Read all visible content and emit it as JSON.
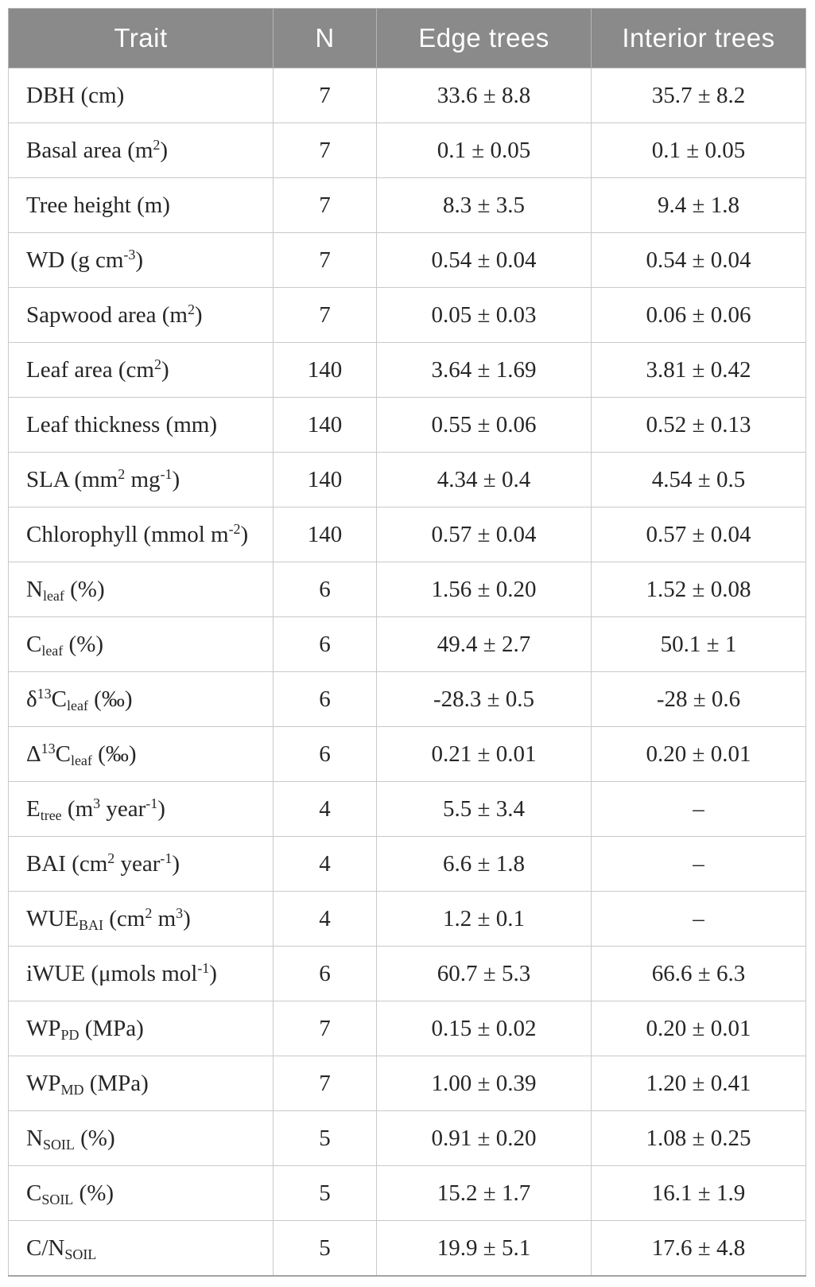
{
  "colors": {
    "header_bg": "#8a8a8a",
    "header_text": "#ffffff",
    "body_text": "#262626",
    "grid_border": "#c9c9c9"
  },
  "header": {
    "columns": [
      "Trait",
      "N",
      "Edge trees",
      "Interior trees"
    ]
  },
  "table": {
    "rows": [
      {
        "trait": [
          {
            "t": "DBH (cm)"
          }
        ],
        "n": "7",
        "edge": "33.6 ± 8.8",
        "interior": "35.7 ± 8.2"
      },
      {
        "trait": [
          {
            "t": "Basal area (m"
          },
          {
            "t": "2",
            "style": "sup"
          },
          {
            "t": ")"
          }
        ],
        "n": "7",
        "edge": "0.1 ± 0.05",
        "interior": "0.1 ± 0.05"
      },
      {
        "trait": [
          {
            "t": "Tree height (m)"
          }
        ],
        "n": "7",
        "edge": "8.3 ± 3.5",
        "interior": "9.4 ± 1.8"
      },
      {
        "trait": [
          {
            "t": "WD (g cm"
          },
          {
            "t": "-3",
            "style": "sup"
          },
          {
            "t": ")"
          }
        ],
        "n": "7",
        "edge": "0.54 ± 0.04",
        "interior": "0.54 ± 0.04"
      },
      {
        "trait": [
          {
            "t": "Sapwood area (m"
          },
          {
            "t": "2",
            "style": "sup"
          },
          {
            "t": ")"
          }
        ],
        "n": "7",
        "edge": "0.05 ± 0.03",
        "interior": "0.06 ± 0.06"
      },
      {
        "trait": [
          {
            "t": "Leaf area (cm"
          },
          {
            "t": "2",
            "style": "sup"
          },
          {
            "t": ")"
          }
        ],
        "n": "140",
        "edge": "3.64 ± 1.69",
        "interior": "3.81 ± 0.42"
      },
      {
        "trait": [
          {
            "t": "Leaf thickness (mm)"
          }
        ],
        "n": "140",
        "edge": "0.55 ± 0.06",
        "interior": "0.52 ± 0.13"
      },
      {
        "trait": [
          {
            "t": "SLA (mm"
          },
          {
            "t": "2",
            "style": "sup"
          },
          {
            "t": " mg"
          },
          {
            "t": "-1",
            "style": "sup"
          },
          {
            "t": ")"
          }
        ],
        "n": "140",
        "edge": "4.34 ± 0.4",
        "interior": "4.54 ± 0.5"
      },
      {
        "trait": [
          {
            "t": "Chlorophyll (mmol m"
          },
          {
            "t": "-2",
            "style": "sup"
          },
          {
            "t": ")"
          }
        ],
        "n": "140",
        "edge": "0.57 ± 0.04",
        "interior": "0.57 ± 0.04"
      },
      {
        "trait": [
          {
            "t": "N"
          },
          {
            "t": "leaf",
            "style": "sub"
          },
          {
            "t": " (%)"
          }
        ],
        "n": "6",
        "edge": "1.56 ± 0.20",
        "interior": "1.52 ± 0.08"
      },
      {
        "trait": [
          {
            "t": "C"
          },
          {
            "t": "leaf",
            "style": "sub"
          },
          {
            "t": " (%)"
          }
        ],
        "n": "6",
        "edge": "49.4 ± 2.7",
        "interior": "50.1 ± 1"
      },
      {
        "trait": [
          {
            "t": "δ"
          },
          {
            "t": "13",
            "style": "sup"
          },
          {
            "t": "C"
          },
          {
            "t": "leaf",
            "style": "sub"
          },
          {
            "t": " (‰)"
          }
        ],
        "n": "6",
        "edge": "-28.3 ± 0.5",
        "interior": "-28 ± 0.6"
      },
      {
        "trait": [
          {
            "t": "Δ"
          },
          {
            "t": "13",
            "style": "sup"
          },
          {
            "t": "C"
          },
          {
            "t": "leaf",
            "style": "sub"
          },
          {
            "t": " (‰)"
          }
        ],
        "n": "6",
        "edge": "0.21 ± 0.01",
        "interior": "0.20 ± 0.01"
      },
      {
        "trait": [
          {
            "t": "E"
          },
          {
            "t": "tree",
            "style": "sub"
          },
          {
            "t": " (m"
          },
          {
            "t": "3",
            "style": "sup"
          },
          {
            "t": " year"
          },
          {
            "t": "-1",
            "style": "sup"
          },
          {
            "t": ")"
          }
        ],
        "n": "4",
        "edge": "5.5 ± 3.4",
        "interior": "–"
      },
      {
        "trait": [
          {
            "t": "BAI (cm"
          },
          {
            "t": "2",
            "style": "sup"
          },
          {
            "t": " year"
          },
          {
            "t": "-1",
            "style": "sup"
          },
          {
            "t": ")"
          }
        ],
        "n": "4",
        "edge": "6.6 ± 1.8",
        "interior": "–"
      },
      {
        "trait": [
          {
            "t": "WUE"
          },
          {
            "t": "BAI",
            "style": "sub"
          },
          {
            "t": " (cm"
          },
          {
            "t": "2",
            "style": "sup"
          },
          {
            "t": " m"
          },
          {
            "t": "3",
            "style": "sup"
          },
          {
            "t": ")"
          }
        ],
        "n": "4",
        "edge": "1.2 ± 0.1",
        "interior": "–"
      },
      {
        "trait": [
          {
            "t": "iWUE (μmols mol"
          },
          {
            "t": "-1",
            "style": "sup"
          },
          {
            "t": ")"
          }
        ],
        "n": "6",
        "edge": "60.7 ± 5.3",
        "interior": "66.6 ± 6.3"
      },
      {
        "trait": [
          {
            "t": "WP"
          },
          {
            "t": "PD",
            "style": "sub"
          },
          {
            "t": " (MPa)"
          }
        ],
        "n": "7",
        "edge": "0.15 ± 0.02",
        "interior": "0.20 ± 0.01"
      },
      {
        "trait": [
          {
            "t": "WP"
          },
          {
            "t": "MD",
            "style": "sub"
          },
          {
            "t": " (MPa)"
          }
        ],
        "n": "7",
        "edge": "1.00 ± 0.39",
        "interior": "1.20 ± 0.41"
      },
      {
        "trait": [
          {
            "t": "N"
          },
          {
            "t": "SOIL",
            "style": "sub"
          },
          {
            "t": " (%)"
          }
        ],
        "n": "5",
        "edge": "0.91 ± 0.20",
        "interior": "1.08 ± 0.25"
      },
      {
        "trait": [
          {
            "t": "C"
          },
          {
            "t": "SOIL",
            "style": "sub"
          },
          {
            "t": " (%)"
          }
        ],
        "n": "5",
        "edge": "15.2 ± 1.7",
        "interior": "16.1 ± 1.9"
      },
      {
        "trait": [
          {
            "t": "C/N"
          },
          {
            "t": "SOIL",
            "style": "sub"
          }
        ],
        "n": "5",
        "edge": "19.9 ± 5.1",
        "interior": "17.6 ± 4.8"
      }
    ]
  }
}
